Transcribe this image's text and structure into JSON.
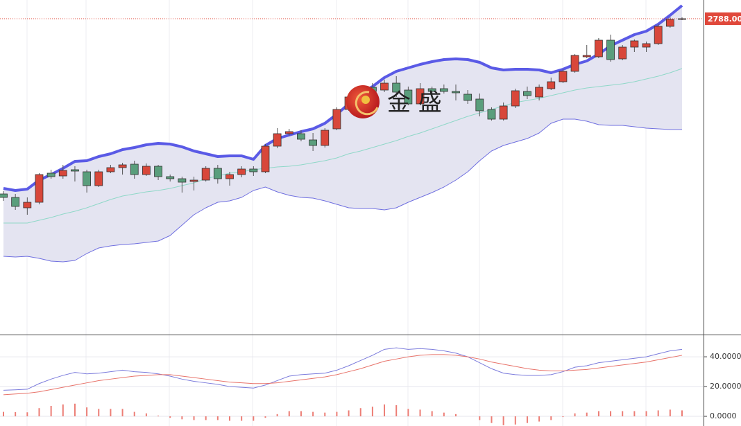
{
  "chart_data": [
    {
      "type": "candlestick",
      "open": [
        2535,
        2530,
        2515,
        2523,
        2565,
        2561,
        2570,
        2567,
        2547,
        2567,
        2573,
        2578,
        2563,
        2575,
        2560,
        2557,
        2553,
        2555,
        2572,
        2557,
        2563,
        2571,
        2567,
        2604,
        2622,
        2622,
        2613,
        2605,
        2629,
        2657,
        2675,
        2689,
        2685,
        2695,
        2685,
        2665,
        2687,
        2687,
        2683,
        2679,
        2672,
        2657,
        2643,
        2662,
        2683,
        2675,
        2687,
        2697,
        2712,
        2733,
        2733,
        2757,
        2730,
        2747,
        2747,
        2752,
        2777,
        2787
      ],
      "high": [
        2539,
        2535,
        2530,
        2565,
        2570,
        2577,
        2575,
        2570,
        2570,
        2577,
        2580,
        2583,
        2579,
        2577,
        2563,
        2560,
        2560,
        2575,
        2577,
        2567,
        2575,
        2575,
        2607,
        2630,
        2629,
        2627,
        2623,
        2630,
        2660,
        2680,
        2690,
        2695,
        2700,
        2705,
        2690,
        2695,
        2690,
        2693,
        2693,
        2685,
        2680,
        2660,
        2667,
        2687,
        2690,
        2693,
        2703,
        2715,
        2737,
        2750,
        2760,
        2765,
        2750,
        2758,
        2755,
        2780,
        2790,
        2790
      ],
      "low": [
        2525,
        2512,
        2505,
        2520,
        2557,
        2557,
        2553,
        2537,
        2545,
        2565,
        2563,
        2557,
        2561,
        2555,
        2553,
        2537,
        2540,
        2553,
        2550,
        2547,
        2559,
        2561,
        2565,
        2601,
        2619,
        2611,
        2597,
        2602,
        2627,
        2655,
        2670,
        2680,
        2682,
        2675,
        2663,
        2663,
        2675,
        2680,
        2670,
        2665,
        2647,
        2641,
        2641,
        2659,
        2672,
        2670,
        2685,
        2695,
        2710,
        2731,
        2731,
        2726,
        2728,
        2740,
        2740,
        2750,
        2775,
        2786
      ],
      "close": [
        2530,
        2517,
        2523,
        2563,
        2560,
        2569,
        2568,
        2547,
        2567,
        2573,
        2577,
        2563,
        2575,
        2560,
        2557,
        2552,
        2555,
        2572,
        2557,
        2563,
        2571,
        2567,
        2604,
        2622,
        2625,
        2614,
        2605,
        2627,
        2657,
        2675,
        2687,
        2683,
        2695,
        2682,
        2665,
        2687,
        2683,
        2683,
        2681,
        2670,
        2655,
        2643,
        2662,
        2684,
        2677,
        2689,
        2697,
        2712,
        2735,
        2735,
        2757,
        2729,
        2747,
        2756,
        2752,
        2777,
        2787,
        2788
      ],
      "up_color": "#d8473a",
      "down_color": "#5a9e7c",
      "bands": [
        {
          "color": "#5a5ae6",
          "width": 4,
          "values": [
            2543,
            2540,
            2542,
            2555,
            2563,
            2572,
            2582,
            2583,
            2589,
            2593,
            2599,
            2602,
            2606,
            2608,
            2607,
            2603,
            2597,
            2593,
            2589,
            2590,
            2590,
            2585,
            2605,
            2615,
            2620,
            2625,
            2629,
            2637,
            2650,
            2665,
            2680,
            2690,
            2703,
            2712,
            2717,
            2722,
            2726,
            2729,
            2730,
            2729,
            2725,
            2717,
            2714,
            2715,
            2715,
            2714,
            2710,
            2715,
            2722,
            2727,
            2737,
            2749,
            2757,
            2765,
            2770,
            2780,
            2793,
            2807
          ]
        },
        {
          "color": "#8fd8c8",
          "width": 1,
          "values": [
            2493,
            2493,
            2493,
            2497,
            2501,
            2506,
            2510,
            2515,
            2521,
            2527,
            2532,
            2535,
            2538,
            2540,
            2543,
            2547,
            2551,
            2557,
            2561,
            2565,
            2567,
            2570,
            2572,
            2574,
            2575,
            2577,
            2580,
            2583,
            2587,
            2593,
            2597,
            2602,
            2607,
            2612,
            2618,
            2623,
            2629,
            2635,
            2641,
            2647,
            2652,
            2657,
            2662,
            2667,
            2670,
            2673,
            2677,
            2681,
            2685,
            2688,
            2690,
            2692,
            2694,
            2697,
            2701,
            2705,
            2710,
            2716
          ]
        },
        {
          "color": "#6f6fe0",
          "width": 1,
          "values": [
            2445,
            2444,
            2445,
            2442,
            2438,
            2437,
            2439,
            2449,
            2457,
            2460,
            2462,
            2463,
            2465,
            2467,
            2475,
            2490,
            2505,
            2515,
            2523,
            2525,
            2530,
            2540,
            2545,
            2538,
            2533,
            2530,
            2529,
            2525,
            2520,
            2515,
            2514,
            2514,
            2512,
            2515,
            2523,
            2530,
            2537,
            2545,
            2555,
            2567,
            2583,
            2597,
            2605,
            2610,
            2615,
            2623,
            2637,
            2643,
            2643,
            2640,
            2635,
            2634,
            2634,
            2632,
            2630,
            2629,
            2628,
            2628
          ]
        }
      ],
      "band_fill": "#e4e4f1",
      "ylim": [
        2332,
        2815
      ],
      "last_price": {
        "value": 2788,
        "label": "2788.00"
      },
      "price_label_color": "#e0483b",
      "watermark": "金 盛"
    },
    {
      "type": "macd",
      "series": [
        {
          "color": "#7b7bdc",
          "values": [
            17.5,
            17.8,
            18.2,
            22,
            25,
            27.5,
            29.5,
            28.5,
            29,
            30,
            31,
            30,
            29.5,
            28.5,
            27,
            25,
            23.5,
            22.5,
            21.5,
            20,
            19.5,
            19,
            21,
            24,
            27,
            28,
            28.5,
            29,
            31,
            34,
            37.5,
            41,
            45,
            46,
            45,
            45.5,
            45,
            44,
            42.5,
            40,
            36,
            32,
            29,
            28,
            27.5,
            27.5,
            28,
            30,
            33,
            34,
            36,
            37,
            38,
            39,
            40,
            42,
            44,
            45
          ]
        },
        {
          "color": "#e8736a",
          "values": [
            14.5,
            15,
            15.5,
            16.5,
            18,
            19.5,
            21,
            22.5,
            24,
            25,
            26,
            27,
            27.5,
            28,
            28,
            27,
            26,
            25,
            24,
            23,
            22.5,
            22,
            22,
            22.5,
            23.5,
            24.5,
            25.5,
            26.5,
            28,
            30,
            32,
            34.5,
            37,
            38.5,
            40,
            41,
            41.5,
            41.5,
            41,
            40,
            38.5,
            36.5,
            35,
            33.5,
            32,
            31,
            30.5,
            30.5,
            31,
            31.5,
            32.5,
            33.5,
            34.5,
            35.5,
            36.5,
            38,
            39.5,
            41
          ]
        }
      ],
      "histogram": {
        "color": "#ec7d75",
        "values": [
          3,
          2.8,
          2.7,
          5.5,
          7,
          8,
          8.5,
          6,
          5,
          5,
          5,
          3,
          2,
          0.5,
          -1,
          -2,
          -2.5,
          -2.5,
          -2.5,
          -3,
          -3,
          -3,
          -1,
          1.5,
          3.5,
          3.5,
          3,
          2.5,
          3,
          4,
          5.5,
          6.5,
          8,
          7.5,
          5,
          4.5,
          3.5,
          2.5,
          1.5,
          0,
          -2.5,
          -4.5,
          -6,
          -5.5,
          -4.5,
          -3.5,
          -2.5,
          -0.5,
          2,
          2.5,
          3.5,
          3.5,
          3.5,
          3.5,
          3.5,
          4,
          4.5,
          4
        ]
      },
      "ylim": [
        -6.5,
        54
      ],
      "yticks": [
        {
          "value": 0,
          "label": "0.0000"
        },
        {
          "value": 20,
          "label": "20.0000"
        },
        {
          "value": 40,
          "label": "40.0000"
        }
      ],
      "grid": true
    }
  ]
}
